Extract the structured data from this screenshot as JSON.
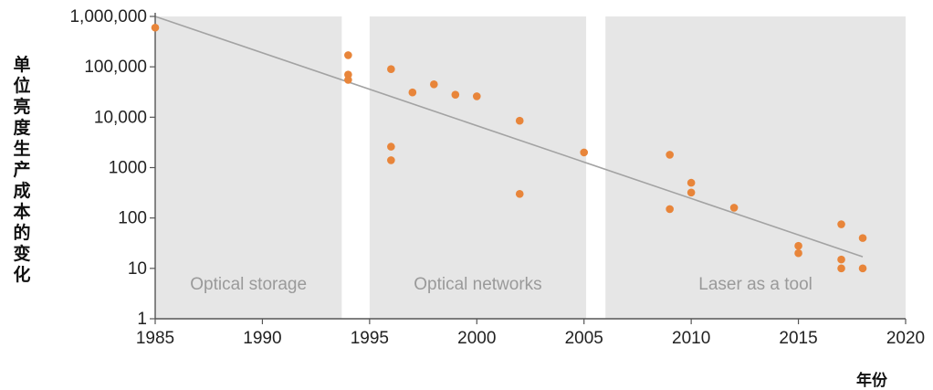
{
  "chart_data": {
    "type": "scatter",
    "title": "",
    "xlabel": "年份",
    "ylabel": "单位亮度生产成本的变化",
    "xlim": [
      1985,
      2020
    ],
    "ylim": [
      1,
      1000000
    ],
    "yscale": "log",
    "x_ticks": [
      1985,
      1990,
      1995,
      2000,
      2005,
      2010,
      2015,
      2020
    ],
    "y_ticks": [
      {
        "value": 1000000,
        "label": "1,000,000"
      },
      {
        "value": 100000,
        "label": "100,000"
      },
      {
        "value": 10000,
        "label": "10,000"
      },
      {
        "value": 1000,
        "label": "1000"
      },
      {
        "value": 100,
        "label": "100"
      },
      {
        "value": 10,
        "label": "10"
      },
      {
        "value": 1,
        "label": "1"
      }
    ],
    "grid": false,
    "regions": [
      {
        "label": "Optical storage",
        "start": 1985,
        "end": 1993.7
      },
      {
        "label": "Optical networks",
        "start": 1995.0,
        "end": 2005.1
      },
      {
        "label": "Laser as a tool",
        "start": 2006.0,
        "end": 2020
      }
    ],
    "trendline": {
      "x": [
        1985,
        2018
      ],
      "y": [
        1000000,
        17
      ]
    },
    "point_color": "#e8853a",
    "region_color": "#e6e6e6",
    "points": [
      {
        "x": 1985,
        "y": 600000
      },
      {
        "x": 1994,
        "y": 170000
      },
      {
        "x": 1994,
        "y": 70000
      },
      {
        "x": 1994,
        "y": 55000
      },
      {
        "x": 1996,
        "y": 90000
      },
      {
        "x": 1996,
        "y": 2600
      },
      {
        "x": 1996,
        "y": 1400
      },
      {
        "x": 1997,
        "y": 31000
      },
      {
        "x": 1998,
        "y": 45000
      },
      {
        "x": 1999,
        "y": 28000
      },
      {
        "x": 2000,
        "y": 26000
      },
      {
        "x": 2002,
        "y": 8500
      },
      {
        "x": 2002,
        "y": 300
      },
      {
        "x": 2005,
        "y": 2000
      },
      {
        "x": 2009,
        "y": 1800
      },
      {
        "x": 2009,
        "y": 150
      },
      {
        "x": 2010,
        "y": 500
      },
      {
        "x": 2010,
        "y": 320
      },
      {
        "x": 2012,
        "y": 160
      },
      {
        "x": 2015,
        "y": 28
      },
      {
        "x": 2015,
        "y": 20
      },
      {
        "x": 2017,
        "y": 75
      },
      {
        "x": 2017,
        "y": 15
      },
      {
        "x": 2017,
        "y": 10
      },
      {
        "x": 2018,
        "y": 40
      },
      {
        "x": 2018,
        "y": 10
      }
    ]
  }
}
